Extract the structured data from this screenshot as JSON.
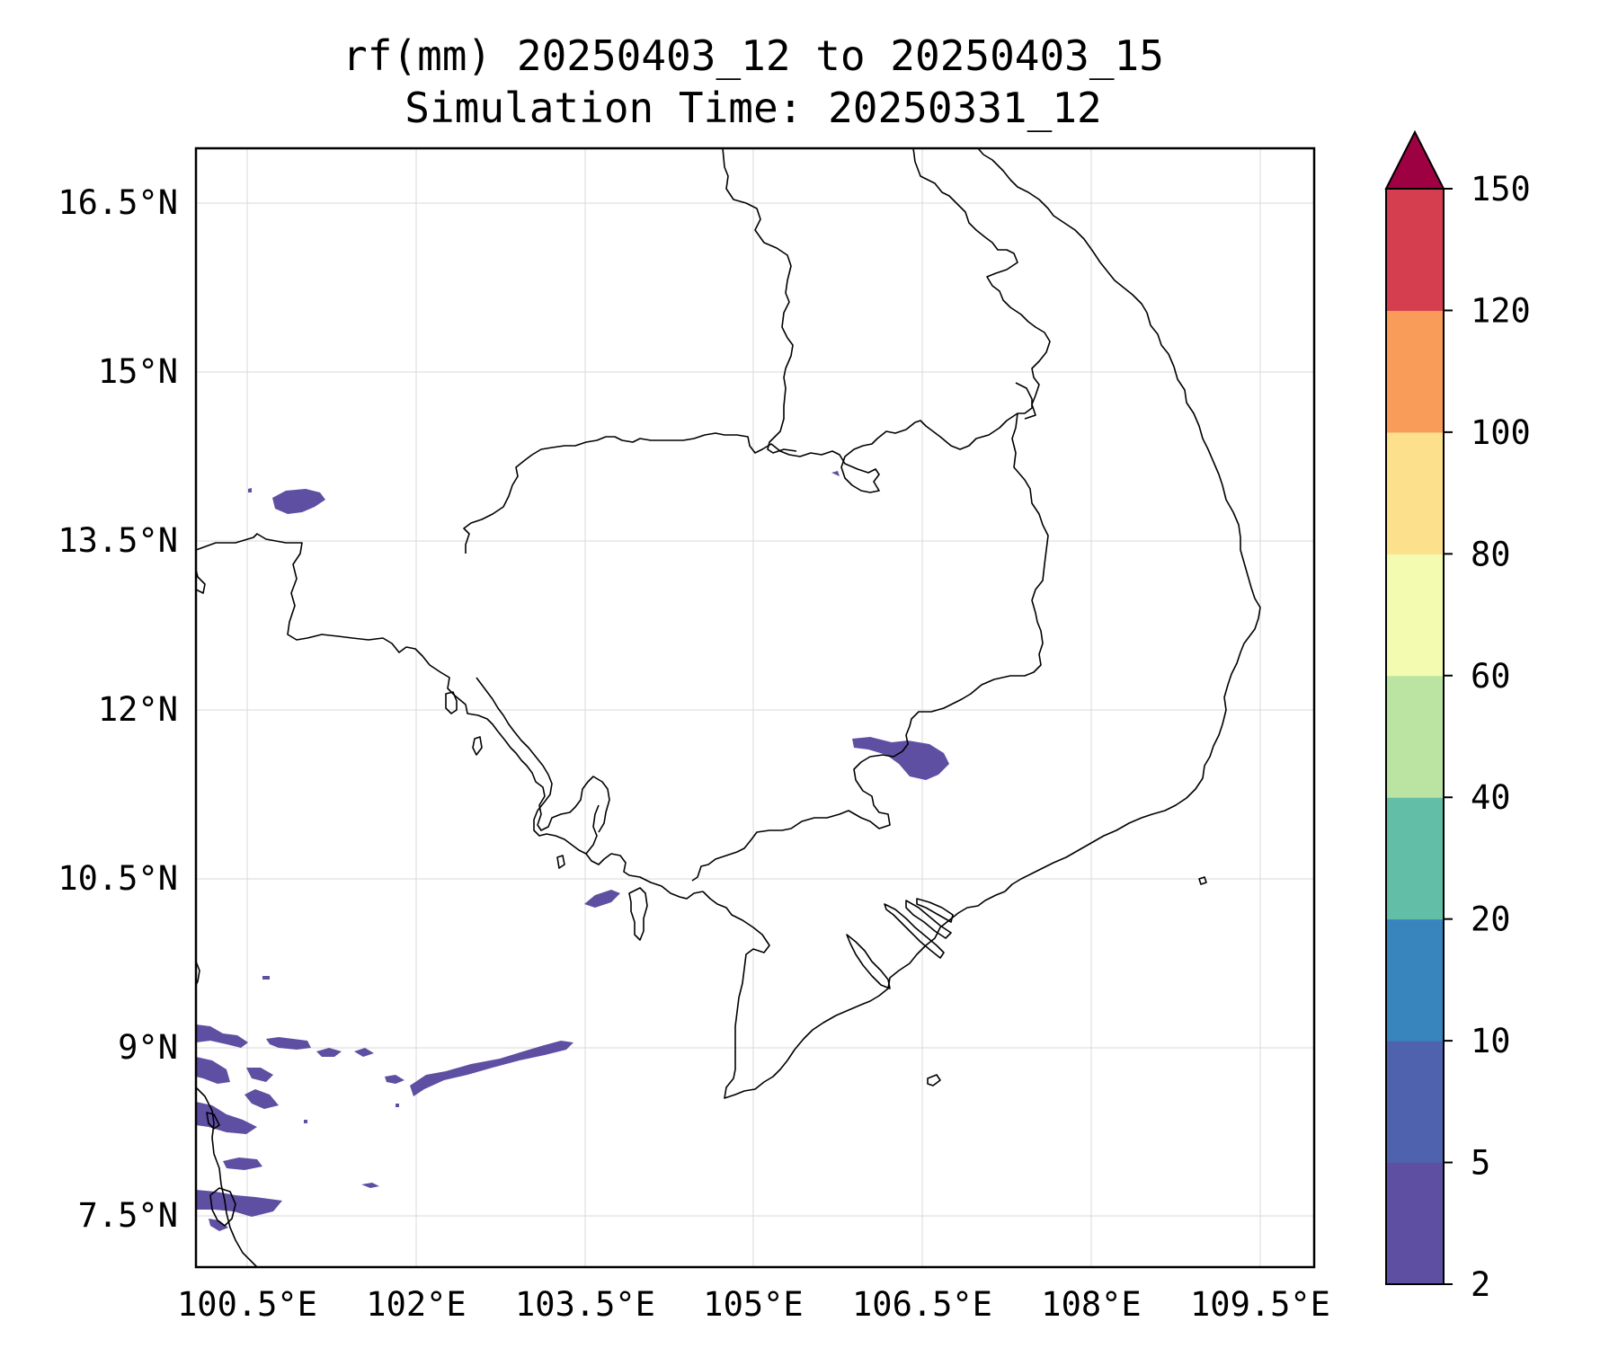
{
  "title": {
    "line1": "rf(mm) 20250403_12 to 20250403_15",
    "line2": "Simulation Time: 20250331_12"
  },
  "x_ticks": [
    "100.5°E",
    "102°E",
    "103.5°E",
    "105°E",
    "106.5°E",
    "108°E",
    "109.5°E"
  ],
  "y_ticks": [
    "16.5°N",
    "15°N",
    "13.5°N",
    "12°N",
    "10.5°N",
    "9°N",
    "7.5°N"
  ],
  "colorbar": {
    "tick_labels": [
      "2",
      "5",
      "10",
      "20",
      "40",
      "60",
      "80",
      "100",
      "120",
      "150"
    ],
    "colors": [
      "#5e4fa2",
      "#4f62ad",
      "#3884bc",
      "#62bea6",
      "#bbe3a2",
      "#f3fbb0",
      "#fce08b",
      "#f99c5a",
      "#d53e4f"
    ],
    "extend_color": "#9e0142",
    "extend": "max"
  },
  "map": {
    "projection": "PlateCarree",
    "lon_range": [
      100.05,
      109.95
    ],
    "lat_range": [
      7.0,
      17.0
    ],
    "gridlines": true,
    "rain_color_class": "#5e4fa2"
  }
}
